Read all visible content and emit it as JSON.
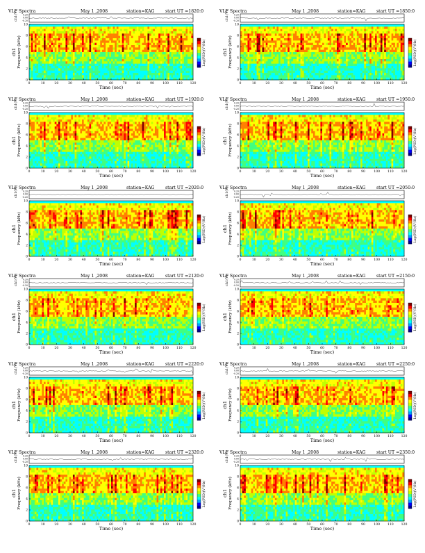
{
  "page": {
    "panel_title": "VLF Spectra",
    "date": "May 1 ,2008",
    "station": "station=KAG",
    "start_label": "start  UT  ="
  },
  "colors": {
    "scale": [
      "#00008f",
      "#0000ff",
      "#00a0ff",
      "#00ffff",
      "#40ff80",
      "#c0ff00",
      "#ffff00",
      "#ff8000",
      "#ff0000",
      "#800000"
    ],
    "background": "#ffffff"
  },
  "chart_data": [
    {
      "type": "heatmap",
      "title": "VLF Spectra",
      "start_ut": "1820:0",
      "station": "station=KAG",
      "date": "May 1 ,2008",
      "xlabel": "Time  (sec)",
      "ylabel": "Frequency  (kHz)",
      "channel_label": "ch1",
      "trace_label": "ch1(V)",
      "trace_ticks": [
        "0.20",
        "0.00",
        "-0.20"
      ],
      "colorbar_label": "Log(PSD)(V²/Hz)",
      "xlim": [
        0,
        120
      ],
      "ylim": [
        0,
        10
      ],
      "xticks": [
        0,
        10,
        20,
        30,
        40,
        50,
        60,
        70,
        80,
        90,
        100,
        110,
        120
      ],
      "yticks": [
        0,
        2,
        4,
        6,
        8,
        10
      ],
      "grid": false
    },
    {
      "type": "heatmap",
      "title": "VLF Spectra",
      "start_ut": "1850:0",
      "station": "station=KAG",
      "date": "May 1 ,2008",
      "xlabel": "Time  (sec)",
      "ylabel": "Frequency  (kHz)",
      "channel_label": "ch1",
      "trace_label": "ch1(V)",
      "trace_ticks": [
        "0.20",
        "0.00",
        "-0.20"
      ],
      "colorbar_label": "Log(PSD)(V²/Hz)",
      "xlim": [
        0,
        120
      ],
      "ylim": [
        0,
        10
      ],
      "xticks": [
        0,
        10,
        20,
        30,
        40,
        50,
        60,
        70,
        80,
        90,
        100,
        110,
        120
      ],
      "yticks": [
        0,
        2,
        4,
        6,
        8,
        10
      ],
      "grid": false
    },
    {
      "type": "heatmap",
      "title": "VLF Spectra",
      "start_ut": "1920:0",
      "station": "station=KAG",
      "date": "May 1 ,2008",
      "xlabel": "Time  (sec)",
      "ylabel": "Frequency  (kHz)",
      "channel_label": "ch1",
      "trace_label": "ch1(V)",
      "trace_ticks": [
        "0.20",
        "0.00",
        "-0.20"
      ],
      "colorbar_label": "Log(PSD)(V²/Hz)",
      "xlim": [
        0,
        120
      ],
      "ylim": [
        0,
        10
      ],
      "xticks": [
        0,
        10,
        20,
        30,
        40,
        50,
        60,
        70,
        80,
        90,
        100,
        110,
        120
      ],
      "yticks": [
        0,
        2,
        4,
        6,
        8,
        10
      ],
      "grid": false
    },
    {
      "type": "heatmap",
      "title": "VLF Spectra",
      "start_ut": "1950:0",
      "station": "station=KAG",
      "date": "May 1 ,2008",
      "xlabel": "Time  (sec)",
      "ylabel": "Frequency  (kHz)",
      "channel_label": "ch1",
      "trace_label": "ch1(V)",
      "trace_ticks": [
        "0.20",
        "0.00",
        "-0.20"
      ],
      "colorbar_label": "Log(PSD)(V²/Hz)",
      "xlim": [
        0,
        120
      ],
      "ylim": [
        0,
        10
      ],
      "xticks": [
        0,
        10,
        20,
        30,
        40,
        50,
        60,
        70,
        80,
        90,
        100,
        110,
        120
      ],
      "yticks": [
        0,
        2,
        4,
        6,
        8,
        10
      ],
      "grid": false
    },
    {
      "type": "heatmap",
      "title": "VLF Spectra",
      "start_ut": "2020:0",
      "station": "station=KAG",
      "date": "May 1 ,2008",
      "xlabel": "Time  (sec)",
      "ylabel": "Frequency  (kHz)",
      "channel_label": "ch1",
      "trace_label": "ch1(V)",
      "trace_ticks": [
        "0.20",
        "0.00",
        "-0.20"
      ],
      "colorbar_label": "Log(PSD)(V²/Hz)",
      "xlim": [
        0,
        120
      ],
      "ylim": [
        0,
        10
      ],
      "xticks": [
        0,
        10,
        20,
        30,
        40,
        50,
        60,
        70,
        80,
        90,
        100,
        110,
        120
      ],
      "yticks": [
        0,
        2,
        4,
        6,
        8,
        10
      ],
      "grid": false
    },
    {
      "type": "heatmap",
      "title": "VLF Spectra",
      "start_ut": "2050:0",
      "station": "station=KAG",
      "date": "May 1 ,2008",
      "xlabel": "Time  (sec)",
      "ylabel": "Frequency  (kHz)",
      "channel_label": "ch1",
      "trace_label": "ch1(V)",
      "trace_ticks": [
        "0.20",
        "0.00",
        "-0.20"
      ],
      "colorbar_label": "Log(PSD)(V²/Hz)",
      "xlim": [
        0,
        120
      ],
      "ylim": [
        0,
        10
      ],
      "xticks": [
        0,
        10,
        20,
        30,
        40,
        50,
        60,
        70,
        80,
        90,
        100,
        110,
        120
      ],
      "yticks": [
        0,
        2,
        4,
        6,
        8,
        10
      ],
      "grid": false
    },
    {
      "type": "heatmap",
      "title": "VLF Spectra",
      "start_ut": "2120:0",
      "station": "station=KAG",
      "date": "May 1 ,2008",
      "xlabel": "Time  (sec)",
      "ylabel": "Frequency  (kHz)",
      "channel_label": "ch1",
      "trace_label": "ch1(V)",
      "trace_ticks": [
        "0.20",
        "0.00",
        "-0.20"
      ],
      "colorbar_label": "Log(PSD)(V²/Hz)",
      "xlim": [
        0,
        120
      ],
      "ylim": [
        0,
        10
      ],
      "xticks": [
        0,
        10,
        20,
        30,
        40,
        50,
        60,
        70,
        80,
        90,
        100,
        110,
        120
      ],
      "yticks": [
        0,
        2,
        4,
        6,
        8,
        10
      ],
      "grid": false
    },
    {
      "type": "heatmap",
      "title": "VLF Spectra",
      "start_ut": "2150:0",
      "station": "station=KAG",
      "date": "May 1 ,2008",
      "xlabel": "Time  (sec)",
      "ylabel": "Frequency  (kHz)",
      "channel_label": "ch1",
      "trace_label": "ch1(V)",
      "trace_ticks": [
        "0.20",
        "0.00",
        "-0.20"
      ],
      "colorbar_label": "Log(PSD)(V²/Hz)",
      "xlim": [
        0,
        120
      ],
      "ylim": [
        0,
        10
      ],
      "xticks": [
        0,
        10,
        20,
        30,
        40,
        50,
        60,
        70,
        80,
        90,
        100,
        110,
        120
      ],
      "yticks": [
        0,
        2,
        4,
        6,
        8,
        10
      ],
      "grid": false
    },
    {
      "type": "heatmap",
      "title": "VLF Spectra",
      "start_ut": "2220:0",
      "station": "station=KAG",
      "date": "May 1 ,2008",
      "xlabel": "Time  (sec)",
      "ylabel": "Frequency  (kHz)",
      "channel_label": "ch1",
      "trace_label": "ch1(V)",
      "trace_ticks": [
        "0.20",
        "0.00",
        "-0.20"
      ],
      "colorbar_label": "Log(PSD)(V²/Hz)",
      "xlim": [
        0,
        120
      ],
      "ylim": [
        0,
        10
      ],
      "xticks": [
        0,
        10,
        20,
        30,
        40,
        50,
        60,
        70,
        80,
        90,
        100,
        110,
        120
      ],
      "yticks": [
        0,
        2,
        4,
        6,
        8,
        10
      ],
      "grid": false
    },
    {
      "type": "heatmap",
      "title": "VLF Spectra",
      "start_ut": "2250:0",
      "station": "station=KAG",
      "date": "May 1 ,2008",
      "xlabel": "Time  (sec)",
      "ylabel": "Frequency  (kHz)",
      "channel_label": "ch1",
      "trace_label": "ch1(V)",
      "trace_ticks": [
        "0.20",
        "0.00",
        "-0.20"
      ],
      "colorbar_label": "Log(PSD)(V²/Hz)",
      "xlim": [
        0,
        120
      ],
      "ylim": [
        0,
        10
      ],
      "xticks": [
        0,
        10,
        20,
        30,
        40,
        50,
        60,
        70,
        80,
        90,
        100,
        110,
        120
      ],
      "yticks": [
        0,
        2,
        4,
        6,
        8,
        10
      ],
      "grid": false
    },
    {
      "type": "heatmap",
      "title": "VLF Spectra",
      "start_ut": "2320:0",
      "station": "station=KAG",
      "date": "May 1 ,2008",
      "xlabel": "Time  (sec)",
      "ylabel": "Frequency  (kHz)",
      "channel_label": "ch1",
      "trace_label": "ch1(V)",
      "trace_ticks": [
        "0.20",
        "0.00",
        "-0.20"
      ],
      "colorbar_label": "Log(PSD)(V²/Hz)",
      "xlim": [
        0,
        120
      ],
      "ylim": [
        0,
        10
      ],
      "xticks": [
        0,
        10,
        20,
        30,
        40,
        50,
        60,
        70,
        80,
        90,
        100,
        110,
        120
      ],
      "yticks": [
        0,
        2,
        4,
        6,
        8,
        10
      ],
      "grid": false
    },
    {
      "type": "heatmap",
      "title": "VLF Spectra",
      "start_ut": "2350:0",
      "station": "station=KAG",
      "date": "May 1 ,2008",
      "xlabel": "Time  (sec)",
      "ylabel": "Frequency  (kHz)",
      "channel_label": "ch1",
      "trace_label": "ch1(V)",
      "trace_ticks": [
        "0.20",
        "0.00",
        "-0.20"
      ],
      "colorbar_label": "Log(PSD)(V²/Hz)",
      "xlim": [
        0,
        120
      ],
      "ylim": [
        0,
        10
      ],
      "xticks": [
        0,
        10,
        20,
        30,
        40,
        50,
        60,
        70,
        80,
        90,
        100,
        110,
        120
      ],
      "yticks": [
        0,
        2,
        4,
        6,
        8,
        10
      ],
      "grid": false
    }
  ]
}
